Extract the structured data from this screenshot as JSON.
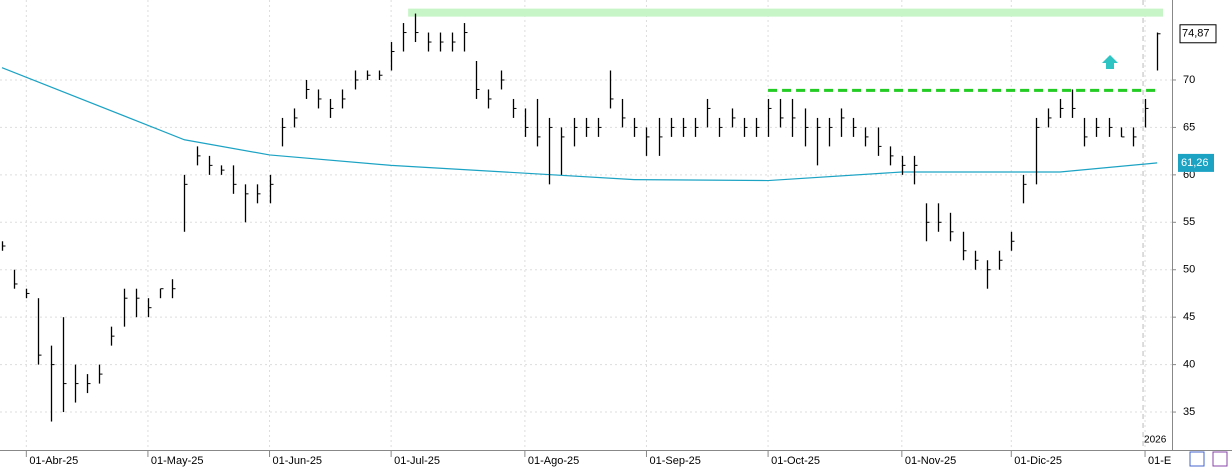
{
  "chart_data": {
    "type": "ohlc",
    "categories": [
      null,
      null,
      "01-Abr-25",
      null,
      null,
      null,
      null,
      null,
      null,
      null,
      null,
      null,
      "01-May-25",
      null,
      null,
      null,
      null,
      null,
      null,
      null,
      null,
      null,
      "01-Jun-25",
      null,
      null,
      null,
      null,
      null,
      null,
      null,
      null,
      null,
      "01-Jul-25",
      null,
      null,
      null,
      null,
      null,
      null,
      null,
      null,
      null,
      null,
      "01-Ago-25",
      null,
      null,
      null,
      null,
      null,
      null,
      null,
      null,
      null,
      "01-Sep-25",
      null,
      null,
      null,
      null,
      null,
      null,
      null,
      null,
      null,
      "01-Oct-25",
      null,
      null,
      null,
      null,
      null,
      null,
      null,
      null,
      null,
      null,
      "01-Nov-25",
      null,
      null,
      null,
      null,
      null,
      null,
      null,
      null,
      "01-Dic-25",
      null,
      null,
      null,
      null,
      null,
      null,
      null,
      null,
      null,
      null,
      "01-E",
      null
    ],
    "high": [
      53,
      50,
      48,
      47,
      42,
      45,
      40,
      39,
      40,
      44,
      48,
      48,
      47,
      48,
      49,
      60,
      63,
      62,
      61,
      61,
      59,
      59,
      60,
      66,
      67,
      70,
      69,
      68,
      69,
      71,
      71,
      71,
      74,
      76,
      77,
      75,
      75,
      75,
      76,
      72,
      69,
      71,
      68,
      67,
      68,
      66,
      65,
      66,
      66,
      66,
      71,
      68,
      66,
      65,
      66,
      66,
      66,
      66,
      68,
      66,
      67,
      66,
      66,
      68,
      68,
      68,
      67,
      66,
      66,
      67,
      66,
      65,
      65,
      63,
      62,
      62,
      57,
      57,
      56,
      54,
      52,
      51,
      52,
      54,
      60,
      66,
      67,
      68,
      69,
      66,
      66,
      66,
      65,
      65,
      68,
      75
    ],
    "low": [
      52,
      48,
      47,
      40,
      34,
      35,
      36,
      37,
      38,
      42,
      44,
      45,
      45,
      47,
      47,
      54,
      61,
      60,
      60,
      58,
      55,
      57,
      57,
      63,
      65,
      68,
      67,
      66,
      67,
      69,
      70,
      70,
      71,
      73,
      74,
      73,
      73,
      73,
      73,
      68,
      67,
      69,
      66,
      64,
      63,
      59,
      60,
      63,
      64,
      64,
      67,
      65,
      64,
      62,
      62,
      64,
      64,
      64,
      65,
      64,
      65,
      64,
      64,
      64,
      65,
      64,
      63,
      61,
      63,
      64,
      64,
      63,
      62,
      61,
      60,
      59,
      53,
      54,
      53,
      51,
      50,
      48,
      50,
      52,
      57,
      59,
      65,
      66,
      66,
      63,
      64,
      64,
      64,
      63,
      65,
      71
    ],
    "close": [
      52.5,
      48.5,
      47.5,
      41,
      40,
      38,
      38,
      38,
      39,
      43,
      47,
      47,
      46,
      48,
      48,
      59,
      62,
      61,
      60.5,
      59,
      58,
      58,
      59,
      65,
      66,
      69,
      68,
      67,
      68,
      70,
      70.5,
      70.5,
      73,
      75,
      75,
      74,
      74,
      74,
      75,
      69,
      68,
      70,
      67,
      65,
      64,
      65,
      64,
      65,
      65,
      65,
      68,
      66,
      65,
      64,
      64,
      65,
      65,
      65,
      67,
      65,
      66,
      65,
      65,
      67,
      66,
      66,
      65,
      65,
      65,
      66,
      65,
      64,
      63,
      62,
      61,
      61,
      55,
      55,
      54,
      52,
      51,
      50,
      51,
      53,
      59,
      65,
      66,
      67,
      67,
      64,
      65,
      65,
      64,
      64,
      67,
      74.87
    ],
    "close_label": "74,87",
    "color": "#000000",
    "ma": {
      "x": [
        0,
        15,
        22,
        32,
        52,
        63,
        74,
        87,
        95
      ],
      "values": [
        71.3,
        63.7,
        62.1,
        61.0,
        59.5,
        59.4,
        60.3,
        60.3,
        61.26
      ],
      "color": "#1ca3c4",
      "last_label": "61,26"
    },
    "levels": [
      {
        "value": 77.1,
        "start": 33.4,
        "color": "#c8f5c8",
        "style": "band"
      },
      {
        "value": 68.9,
        "start": 63,
        "color": "#22cc22",
        "style": "dashed"
      }
    ],
    "year_label": "2026",
    "ylim": [
      31,
      78.43
    ],
    "yticks": [
      35,
      40,
      45,
      50,
      55,
      60,
      65,
      70
    ],
    "grid": true
  }
}
